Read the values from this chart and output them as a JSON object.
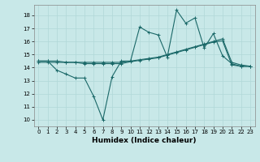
{
  "xlabel": "Humidex (Indice chaleur)",
  "bg_color": "#c8e8e8",
  "grid_color": "#b0d8d8",
  "line_color": "#1a6868",
  "xlim": [
    -0.5,
    23.5
  ],
  "ylim": [
    9.5,
    18.8
  ],
  "xticks": [
    0,
    1,
    2,
    3,
    4,
    5,
    6,
    7,
    8,
    9,
    10,
    11,
    12,
    13,
    14,
    15,
    16,
    17,
    18,
    19,
    20,
    21,
    22,
    23
  ],
  "yticks": [
    10,
    11,
    12,
    13,
    14,
    15,
    16,
    17,
    18
  ],
  "line1_x": [
    0,
    1,
    2,
    3,
    4,
    5,
    6,
    7,
    8,
    9,
    10,
    11,
    12,
    13,
    14,
    15,
    16,
    17,
    18,
    19,
    20,
    21,
    22,
    23
  ],
  "line1_y": [
    14.5,
    14.5,
    13.8,
    13.5,
    13.2,
    13.2,
    11.8,
    10.0,
    13.3,
    14.5,
    14.5,
    17.1,
    16.7,
    16.5,
    14.8,
    18.4,
    17.4,
    17.8,
    15.5,
    16.6,
    14.9,
    14.3,
    14.1,
    14.1
  ],
  "line2_x": [
    0,
    1,
    2,
    3,
    4,
    5,
    6,
    7,
    8,
    9,
    10,
    11,
    12,
    13,
    14,
    15,
    16,
    17,
    18,
    19,
    20,
    21,
    22,
    23
  ],
  "line2_y": [
    14.5,
    14.5,
    14.5,
    14.4,
    14.4,
    14.3,
    14.3,
    14.3,
    14.3,
    14.3,
    14.45,
    14.55,
    14.65,
    14.75,
    14.95,
    15.15,
    15.35,
    15.55,
    15.75,
    15.95,
    16.05,
    14.2,
    14.1,
    14.1
  ],
  "line3_x": [
    0,
    1,
    2,
    3,
    4,
    5,
    6,
    7,
    8,
    9,
    10,
    11,
    12,
    13,
    14,
    15,
    16,
    17,
    18,
    19,
    20,
    21,
    22,
    23
  ],
  "line3_y": [
    14.4,
    14.4,
    14.4,
    14.4,
    14.4,
    14.4,
    14.4,
    14.4,
    14.4,
    14.4,
    14.5,
    14.6,
    14.7,
    14.8,
    15.0,
    15.2,
    15.4,
    15.6,
    15.8,
    16.0,
    16.2,
    14.4,
    14.2,
    14.1
  ],
  "marker": "+",
  "markersize": 3,
  "linewidth": 0.8,
  "tick_fontsize": 5,
  "label_fontsize": 6.5
}
